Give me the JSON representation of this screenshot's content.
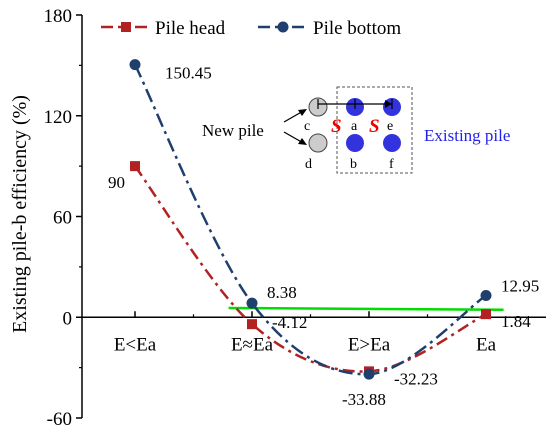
{
  "chart_data": {
    "type": "line",
    "ylabel": "Existing pile-b efficiency (%)",
    "xlabel": "",
    "categories": [
      "E<Ea",
      "E≈Ea",
      "E>Ea",
      "Ea"
    ],
    "yticks": [
      -60,
      0,
      60,
      120,
      180
    ],
    "ylim": [
      -60,
      180
    ],
    "legend_position": "top",
    "series": [
      {
        "name": "Pile head",
        "color": "#b22222",
        "marker": "square",
        "dash": "dash-dot",
        "x": [
          0,
          1,
          2,
          3
        ],
        "values": [
          90,
          -4.12,
          -32.23,
          1.84
        ],
        "labels": [
          "90",
          "-4.12",
          "-32.23",
          "1.84"
        ]
      },
      {
        "name": "Pile bottom",
        "color": "#1f3f6e",
        "marker": "circle",
        "dash": "long-dash-dot",
        "x": [
          0,
          1,
          2,
          3
        ],
        "values": [
          150.45,
          8.38,
          -33.88,
          12.95
        ],
        "labels": [
          "150.45",
          "8.38",
          "-33.88",
          "12.95"
        ]
      }
    ],
    "reference_line": {
      "color": "#00dd00",
      "x_start": 0.8,
      "x_end": 3.15,
      "y_start": 5.5,
      "y_end": 4.5
    },
    "inset": {
      "new_pile_label": "New pile",
      "existing_pile_label": "Existing pile",
      "spacing_symbol": "S",
      "new_piles": [
        "c",
        "d"
      ],
      "existing_piles": [
        "a",
        "e",
        "b",
        "f"
      ],
      "new_pile_color": "#cccccc",
      "existing_pile_color": "#3333dd",
      "existing_label_color": "#2222ee",
      "spacing_color": "#ee0000"
    }
  }
}
